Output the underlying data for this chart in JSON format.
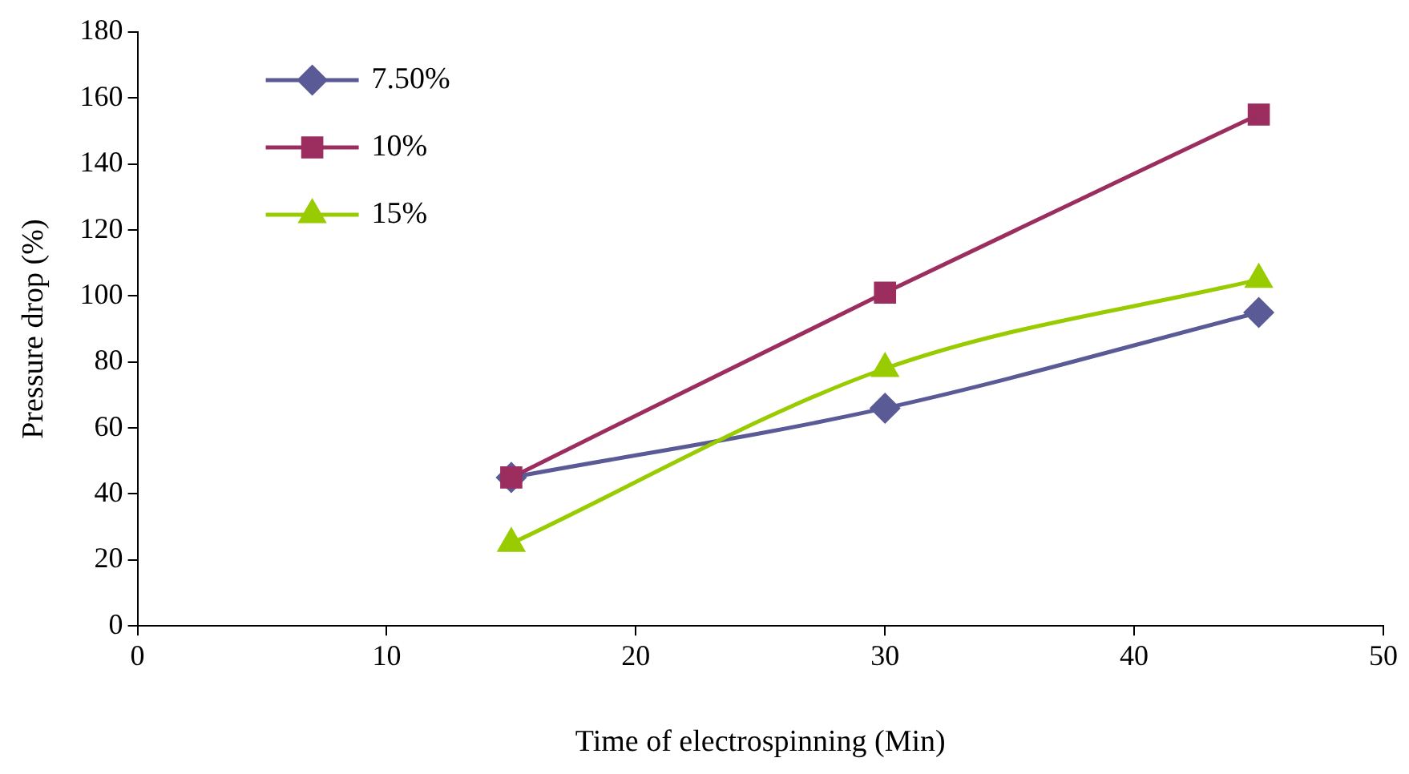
{
  "chart_data": {
    "type": "line",
    "xlabel": "Time of electrospinning (Min)",
    "ylabel": "Pressure drop (%)",
    "x": [
      15,
      30,
      45
    ],
    "series": [
      {
        "name": "7.50%",
        "color": "#5a5a96",
        "marker": "diamond",
        "values": [
          45,
          66,
          95
        ]
      },
      {
        "name": "10%",
        "color": "#9b2d5f",
        "marker": "square",
        "values": [
          45,
          101,
          155
        ]
      },
      {
        "name": "15%",
        "color": "#99cc00",
        "marker": "triangle",
        "values": [
          25,
          78,
          105
        ]
      }
    ],
    "xlim": [
      0,
      50
    ],
    "xticks": [
      0,
      10,
      20,
      30,
      40,
      50
    ],
    "ylim": [
      0,
      180
    ],
    "yticks": [
      0,
      20,
      40,
      60,
      80,
      100,
      120,
      140,
      160,
      180
    ],
    "grid": false,
    "legend": "top left"
  }
}
